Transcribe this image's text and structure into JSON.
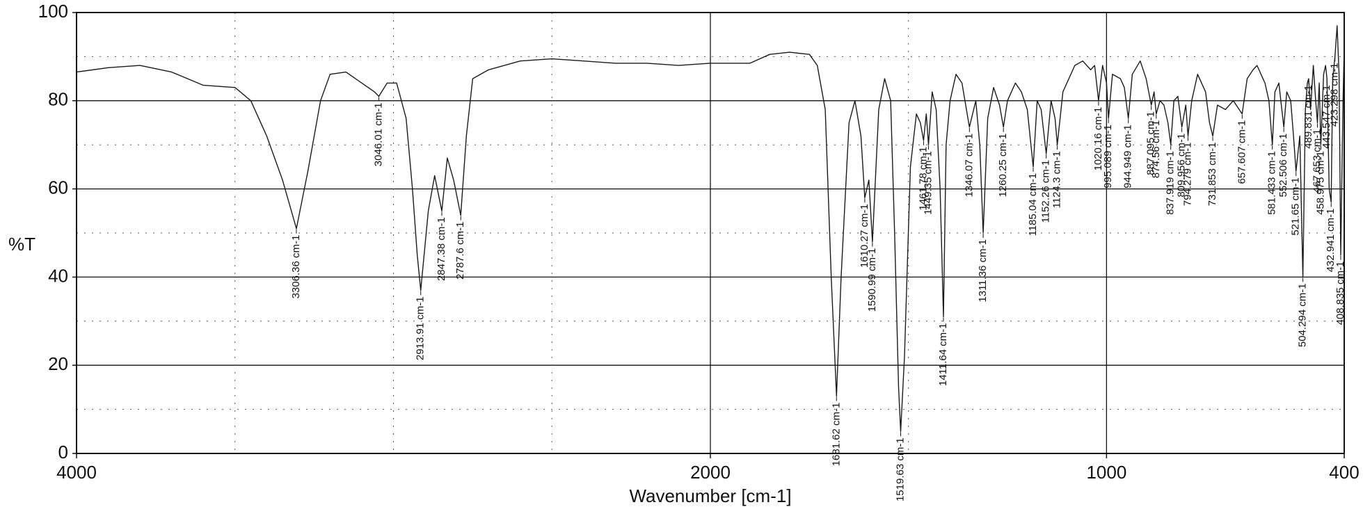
{
  "chart_data": {
    "type": "line",
    "title": "",
    "xlabel": "Wavenumber [cm-1]",
    "ylabel": "%T",
    "xlim": [
      4000,
      400
    ],
    "ylim": [
      0,
      100
    ],
    "x_reversed": true,
    "grid": true,
    "x_ticks": [
      "4000",
      "2000",
      "1000",
      "400"
    ],
    "y_ticks": [
      "0",
      "20",
      "40",
      "60",
      "80",
      "100"
    ],
    "line_color": "#1a1a1a",
    "series": [
      {
        "points": [
          [
            4000,
            86.5
          ],
          [
            3900,
            87.5
          ],
          [
            3800,
            88
          ],
          [
            3700,
            86.5
          ],
          [
            3600,
            83.5
          ],
          [
            3500,
            83
          ],
          [
            3450,
            80
          ],
          [
            3400,
            72
          ],
          [
            3350,
            62
          ],
          [
            3306.36,
            51
          ],
          [
            3270,
            64
          ],
          [
            3230,
            80
          ],
          [
            3200,
            86
          ],
          [
            3150,
            86.5
          ],
          [
            3100,
            84
          ],
          [
            3060,
            82
          ],
          [
            3046.01,
            81
          ],
          [
            3020,
            84
          ],
          [
            2990,
            84
          ],
          [
            2960,
            76
          ],
          [
            2940,
            60
          ],
          [
            2925,
            45
          ],
          [
            2913.91,
            37
          ],
          [
            2890,
            55
          ],
          [
            2870,
            63
          ],
          [
            2847.38,
            55
          ],
          [
            2830,
            67
          ],
          [
            2810,
            62
          ],
          [
            2787.6,
            54
          ],
          [
            2770,
            72
          ],
          [
            2750,
            85
          ],
          [
            2700,
            87
          ],
          [
            2600,
            89
          ],
          [
            2500,
            89.5
          ],
          [
            2400,
            89
          ],
          [
            2300,
            88.5
          ],
          [
            2200,
            88.5
          ],
          [
            2100,
            88
          ],
          [
            2000,
            88.5
          ],
          [
            1900,
            88.5
          ],
          [
            1850,
            90.5
          ],
          [
            1800,
            91
          ],
          [
            1750,
            90.5
          ],
          [
            1730,
            88
          ],
          [
            1710,
            78
          ],
          [
            1695,
            40
          ],
          [
            1681.62,
            13
          ],
          [
            1670,
            40
          ],
          [
            1650,
            75
          ],
          [
            1635,
            80
          ],
          [
            1620,
            72
          ],
          [
            1610.27,
            58
          ],
          [
            1600,
            62
          ],
          [
            1590.99,
            48
          ],
          [
            1575,
            78
          ],
          [
            1560,
            85
          ],
          [
            1545,
            80
          ],
          [
            1535,
            50
          ],
          [
            1525,
            15
          ],
          [
            1519.63,
            5
          ],
          [
            1510,
            22
          ],
          [
            1495,
            65
          ],
          [
            1480,
            77
          ],
          [
            1470,
            75
          ],
          [
            1461.78,
            71
          ],
          [
            1455,
            77
          ],
          [
            1449.35,
            70
          ],
          [
            1440,
            82
          ],
          [
            1430,
            78
          ],
          [
            1420,
            60
          ],
          [
            1411.64,
            31
          ],
          [
            1405,
            70
          ],
          [
            1395,
            80
          ],
          [
            1380,
            86
          ],
          [
            1365,
            84
          ],
          [
            1346.07,
            74
          ],
          [
            1330,
            80
          ],
          [
            1320,
            70
          ],
          [
            1311.36,
            50
          ],
          [
            1300,
            76
          ],
          [
            1285,
            83
          ],
          [
            1270,
            79
          ],
          [
            1260.25,
            74
          ],
          [
            1250,
            80
          ],
          [
            1230,
            84
          ],
          [
            1215,
            82
          ],
          [
            1200,
            78
          ],
          [
            1185.04,
            65
          ],
          [
            1175,
            80
          ],
          [
            1165,
            78
          ],
          [
            1152.26,
            68
          ],
          [
            1140,
            80
          ],
          [
            1130,
            76
          ],
          [
            1124.3,
            70
          ],
          [
            1110,
            82
          ],
          [
            1080,
            88
          ],
          [
            1060,
            89
          ],
          [
            1040,
            87
          ],
          [
            1030,
            88
          ],
          [
            1020.16,
            80
          ],
          [
            1010,
            88
          ],
          [
            1000,
            84
          ],
          [
            995.089,
            76
          ],
          [
            985,
            86
          ],
          [
            965,
            85
          ],
          [
            955,
            83
          ],
          [
            944.949,
            76
          ],
          [
            935,
            86
          ],
          [
            915,
            89
          ],
          [
            900,
            85
          ],
          [
            887.095,
            79
          ],
          [
            880,
            82
          ],
          [
            874.56,
            77
          ],
          [
            865,
            80
          ],
          [
            855,
            79
          ],
          [
            845,
            75
          ],
          [
            837.919,
            70
          ],
          [
            830,
            80
          ],
          [
            820,
            81
          ],
          [
            809.956,
            74
          ],
          [
            800,
            79
          ],
          [
            794.279,
            72
          ],
          [
            785,
            80
          ],
          [
            770,
            86
          ],
          [
            750,
            82
          ],
          [
            740,
            75
          ],
          [
            731.853,
            72
          ],
          [
            720,
            79
          ],
          [
            700,
            78
          ],
          [
            680,
            80
          ],
          [
            665,
            78
          ],
          [
            657.607,
            77
          ],
          [
            645,
            85
          ],
          [
            630,
            87
          ],
          [
            620,
            88
          ],
          [
            610,
            86
          ],
          [
            600,
            84
          ],
          [
            590,
            80
          ],
          [
            581.433,
            70
          ],
          [
            575,
            82
          ],
          [
            565,
            84
          ],
          [
            560,
            80
          ],
          [
            552.506,
            74
          ],
          [
            545,
            82
          ],
          [
            535,
            80
          ],
          [
            528,
            72
          ],
          [
            521.65,
            64
          ],
          [
            512,
            72
          ],
          [
            504.294,
            40
          ],
          [
            498,
            78
          ],
          [
            493,
            84
          ],
          [
            489.831,
            85
          ],
          [
            485,
            78
          ],
          [
            478,
            88
          ],
          [
            472,
            80
          ],
          [
            467.653,
            75
          ],
          [
            463,
            84
          ],
          [
            458.975,
            70
          ],
          [
            452,
            86
          ],
          [
            447,
            88
          ],
          [
            443.547,
            85
          ],
          [
            438,
            60
          ],
          [
            432.941,
            57
          ],
          [
            429,
            85
          ],
          [
            423.298,
            90
          ],
          [
            418,
            97
          ],
          [
            413,
            86
          ],
          [
            408.835,
            45
          ],
          [
            403,
            80
          ],
          [
            400,
            92
          ]
        ]
      }
    ],
    "annotations": [
      {
        "text": "3306.36 cm-1",
        "x": 3306.36,
        "y": 51
      },
      {
        "text": "3046.01 cm-1",
        "x": 3046.01,
        "y": 81
      },
      {
        "text": "2913.91 cm-1",
        "x": 2913.91,
        "y": 37
      },
      {
        "text": "2847.38 cm-1",
        "x": 2847.38,
        "y": 55
      },
      {
        "text": "2787.6 cm-1",
        "x": 2787.6,
        "y": 54
      },
      {
        "text": "1681.62 cm-1",
        "x": 1681.62,
        "y": 13
      },
      {
        "text": "1610.27 cm-1",
        "x": 1610.27,
        "y": 58
      },
      {
        "text": "1590.99 cm-1",
        "x": 1590.99,
        "y": 48
      },
      {
        "text": "1519.63 cm-1",
        "x": 1519.63,
        "y": 5
      },
      {
        "text": "1461.78 cm-1",
        "x": 1461.78,
        "y": 71
      },
      {
        "text": "1449.35 cm-1",
        "x": 1449.35,
        "y": 70
      },
      {
        "text": "1411.64 cm-1",
        "x": 1411.64,
        "y": 31
      },
      {
        "text": "1346.07 cm-1",
        "x": 1346.07,
        "y": 74
      },
      {
        "text": "1311.36 cm-1",
        "x": 1311.36,
        "y": 50
      },
      {
        "text": "1260.25 cm-1",
        "x": 1260.25,
        "y": 74
      },
      {
        "text": "1185.04 cm-1",
        "x": 1185.04,
        "y": 65
      },
      {
        "text": "1152.26 cm-1",
        "x": 1152.26,
        "y": 68
      },
      {
        "text": "1124.3 cm-1",
        "x": 1124.3,
        "y": 70
      },
      {
        "text": "1020.16 cm-1",
        "x": 1020.16,
        "y": 80
      },
      {
        "text": "995.089 cm-1",
        "x": 995.089,
        "y": 76
      },
      {
        "text": "944.949 cm-1",
        "x": 944.949,
        "y": 76
      },
      {
        "text": "887.095 cm-1",
        "x": 887.095,
        "y": 79
      },
      {
        "text": "874.56 cm-1",
        "x": 874.56,
        "y": 77
      },
      {
        "text": "837.919 cm-1",
        "x": 837.919,
        "y": 70
      },
      {
        "text": "809.956 cm-1",
        "x": 809.956,
        "y": 74
      },
      {
        "text": "794.279 cm-1",
        "x": 794.279,
        "y": 72
      },
      {
        "text": "731.853 cm-1",
        "x": 731.853,
        "y": 72
      },
      {
        "text": "657.607 cm-1",
        "x": 657.607,
        "y": 77
      },
      {
        "text": "581.433 cm-1",
        "x": 581.433,
        "y": 70
      },
      {
        "text": "552.506 cm-1",
        "x": 552.506,
        "y": 74
      },
      {
        "text": "521.65 cm-1",
        "x": 521.65,
        "y": 64
      },
      {
        "text": "504.294 cm-1",
        "x": 504.294,
        "y": 40
      },
      {
        "text": "489.831 cm-1",
        "x": 489.831,
        "y": 85
      },
      {
        "text": "467.653 cm-1",
        "x": 467.653,
        "y": 75
      },
      {
        "text": "458.975 cm-1",
        "x": 458.975,
        "y": 70
      },
      {
        "text": "443.547 cm-1",
        "x": 443.547,
        "y": 85
      },
      {
        "text": "432.941 cm-1",
        "x": 432.941,
        "y": 57
      },
      {
        "text": "423.298 cm-1",
        "x": 423.298,
        "y": 90
      },
      {
        "text": "408.835 cm-1",
        "x": 408.835,
        "y": 45
      }
    ]
  }
}
